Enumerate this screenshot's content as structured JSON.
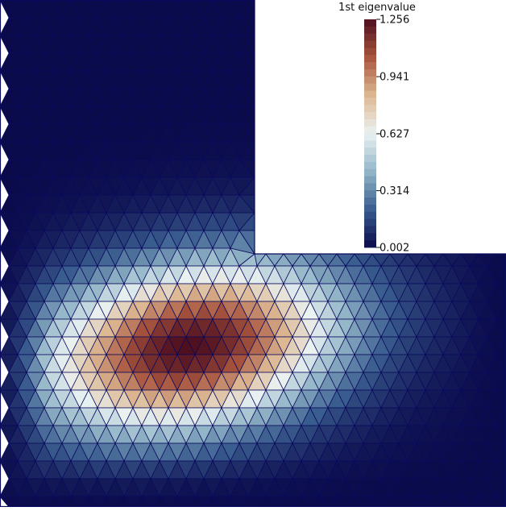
{
  "colorbar": {
    "title": "1st eigenvalue",
    "min": 0.002,
    "max": 1.256,
    "tick_labels": [
      "1.256",
      "0.941",
      "0.627",
      "0.314",
      "0.002"
    ],
    "tick_values": [
      1.256,
      0.941,
      0.627,
      0.314,
      0.002
    ],
    "n_bands": 32,
    "colormap": [
      "#0b0b4c",
      "#3a5d8f",
      "#93b6c8",
      "#eaf2f2",
      "#ddb892",
      "#a8553e",
      "#4e0f1f"
    ]
  },
  "mesh": {
    "line_color": "#0a0a5e",
    "shape": "L-shaped domain",
    "peak_value": 1.256
  }
}
